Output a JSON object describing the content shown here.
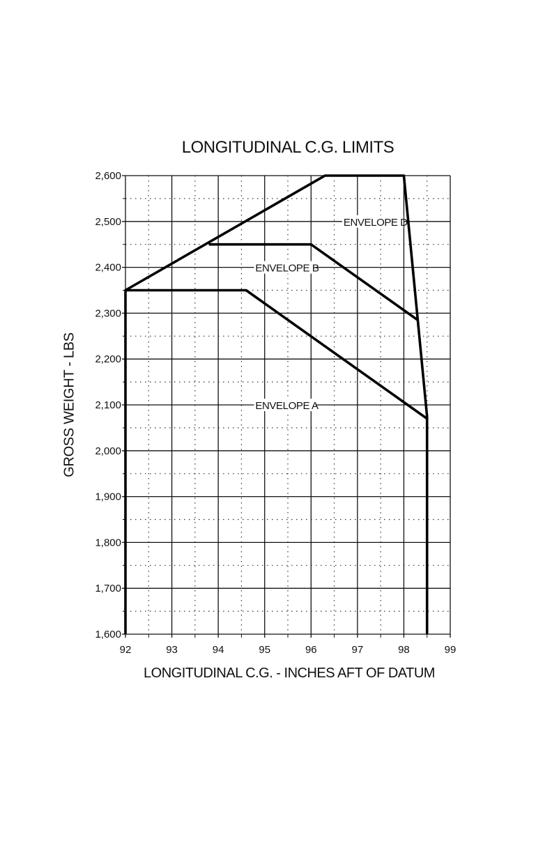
{
  "chart_data": {
    "type": "line",
    "title": "LONGITUDINAL C.G. LIMITS",
    "xlabel": "LONGITUDINAL C.G. - INCHES AFT OF DATUM",
    "ylabel": "GROSS WEIGHT - LBS",
    "xlim": [
      92,
      99
    ],
    "ylim": [
      1600,
      2600
    ],
    "xticks": [
      "92",
      "93",
      "94",
      "95",
      "96",
      "97",
      "98",
      "99"
    ],
    "yticks": [
      "1,600",
      "1,700",
      "1,800",
      "1,900",
      "2,000",
      "2,100",
      "2,200",
      "2,300",
      "2,400",
      "2,500",
      "2,600"
    ],
    "grid": "major solid, minor dotted",
    "series": [
      {
        "name": "ENVELOPE D",
        "points": [
          [
            92,
            1600
          ],
          [
            92,
            2350
          ],
          [
            96.3,
            2600
          ],
          [
            98.0,
            2600
          ],
          [
            98.5,
            2075
          ],
          [
            98.5,
            1600
          ]
        ],
        "label_at": [
          96.7,
          2500
        ]
      },
      {
        "name": "ENVELOPE B",
        "points": [
          [
            93.8,
            2450
          ],
          [
            96.0,
            2450
          ],
          [
            98.3,
            2285
          ]
        ],
        "label_at": [
          94.8,
          2400
        ]
      },
      {
        "name": "ENVELOPE A",
        "points": [
          [
            92,
            2350
          ],
          [
            94.6,
            2350
          ],
          [
            98.5,
            2070
          ]
        ],
        "label_at": [
          94.8,
          2100
        ]
      }
    ]
  }
}
